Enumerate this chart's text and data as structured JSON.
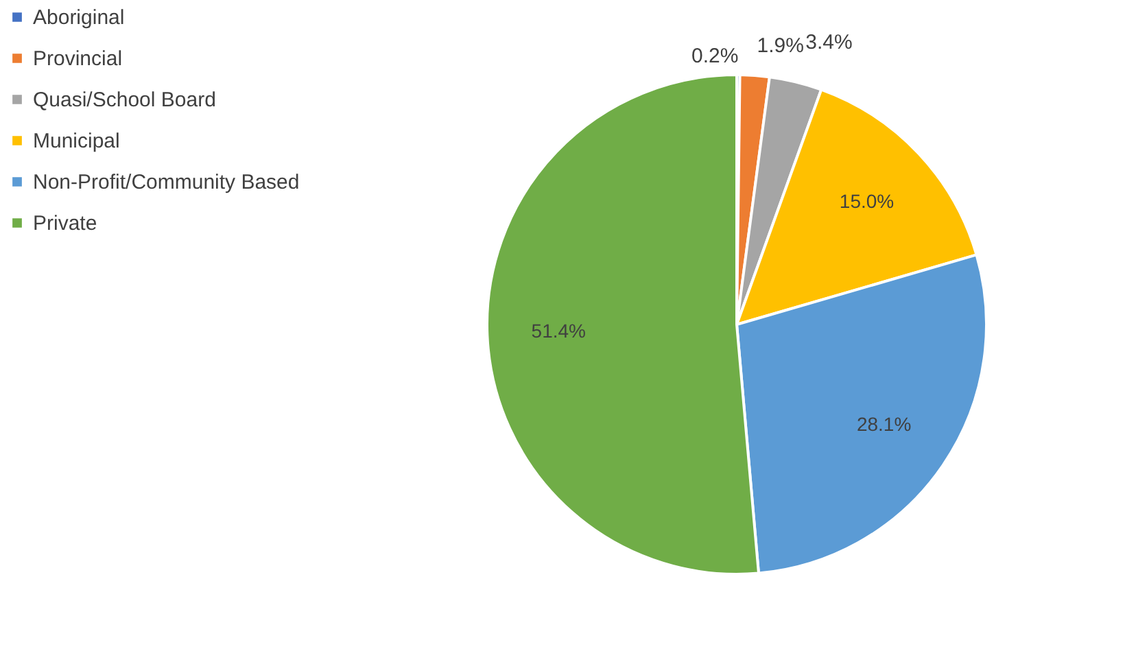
{
  "chart_data": {
    "type": "pie",
    "categories": [
      "Aboriginal",
      "Provincial",
      "Quasi/School Board",
      "Municipal",
      "Non-Profit/Community Based",
      "Private"
    ],
    "values": [
      0.2,
      1.9,
      3.4,
      15.0,
      28.1,
      51.4
    ],
    "value_labels": [
      "0.2%",
      "1.9%",
      "3.4%",
      "15.0%",
      "28.1%",
      "51.4%"
    ],
    "colors": [
      "#4472c4",
      "#ed7d31",
      "#a5a5a5",
      "#ffc000",
      "#5b9bd5",
      "#70ad47"
    ],
    "legend": "left"
  }
}
